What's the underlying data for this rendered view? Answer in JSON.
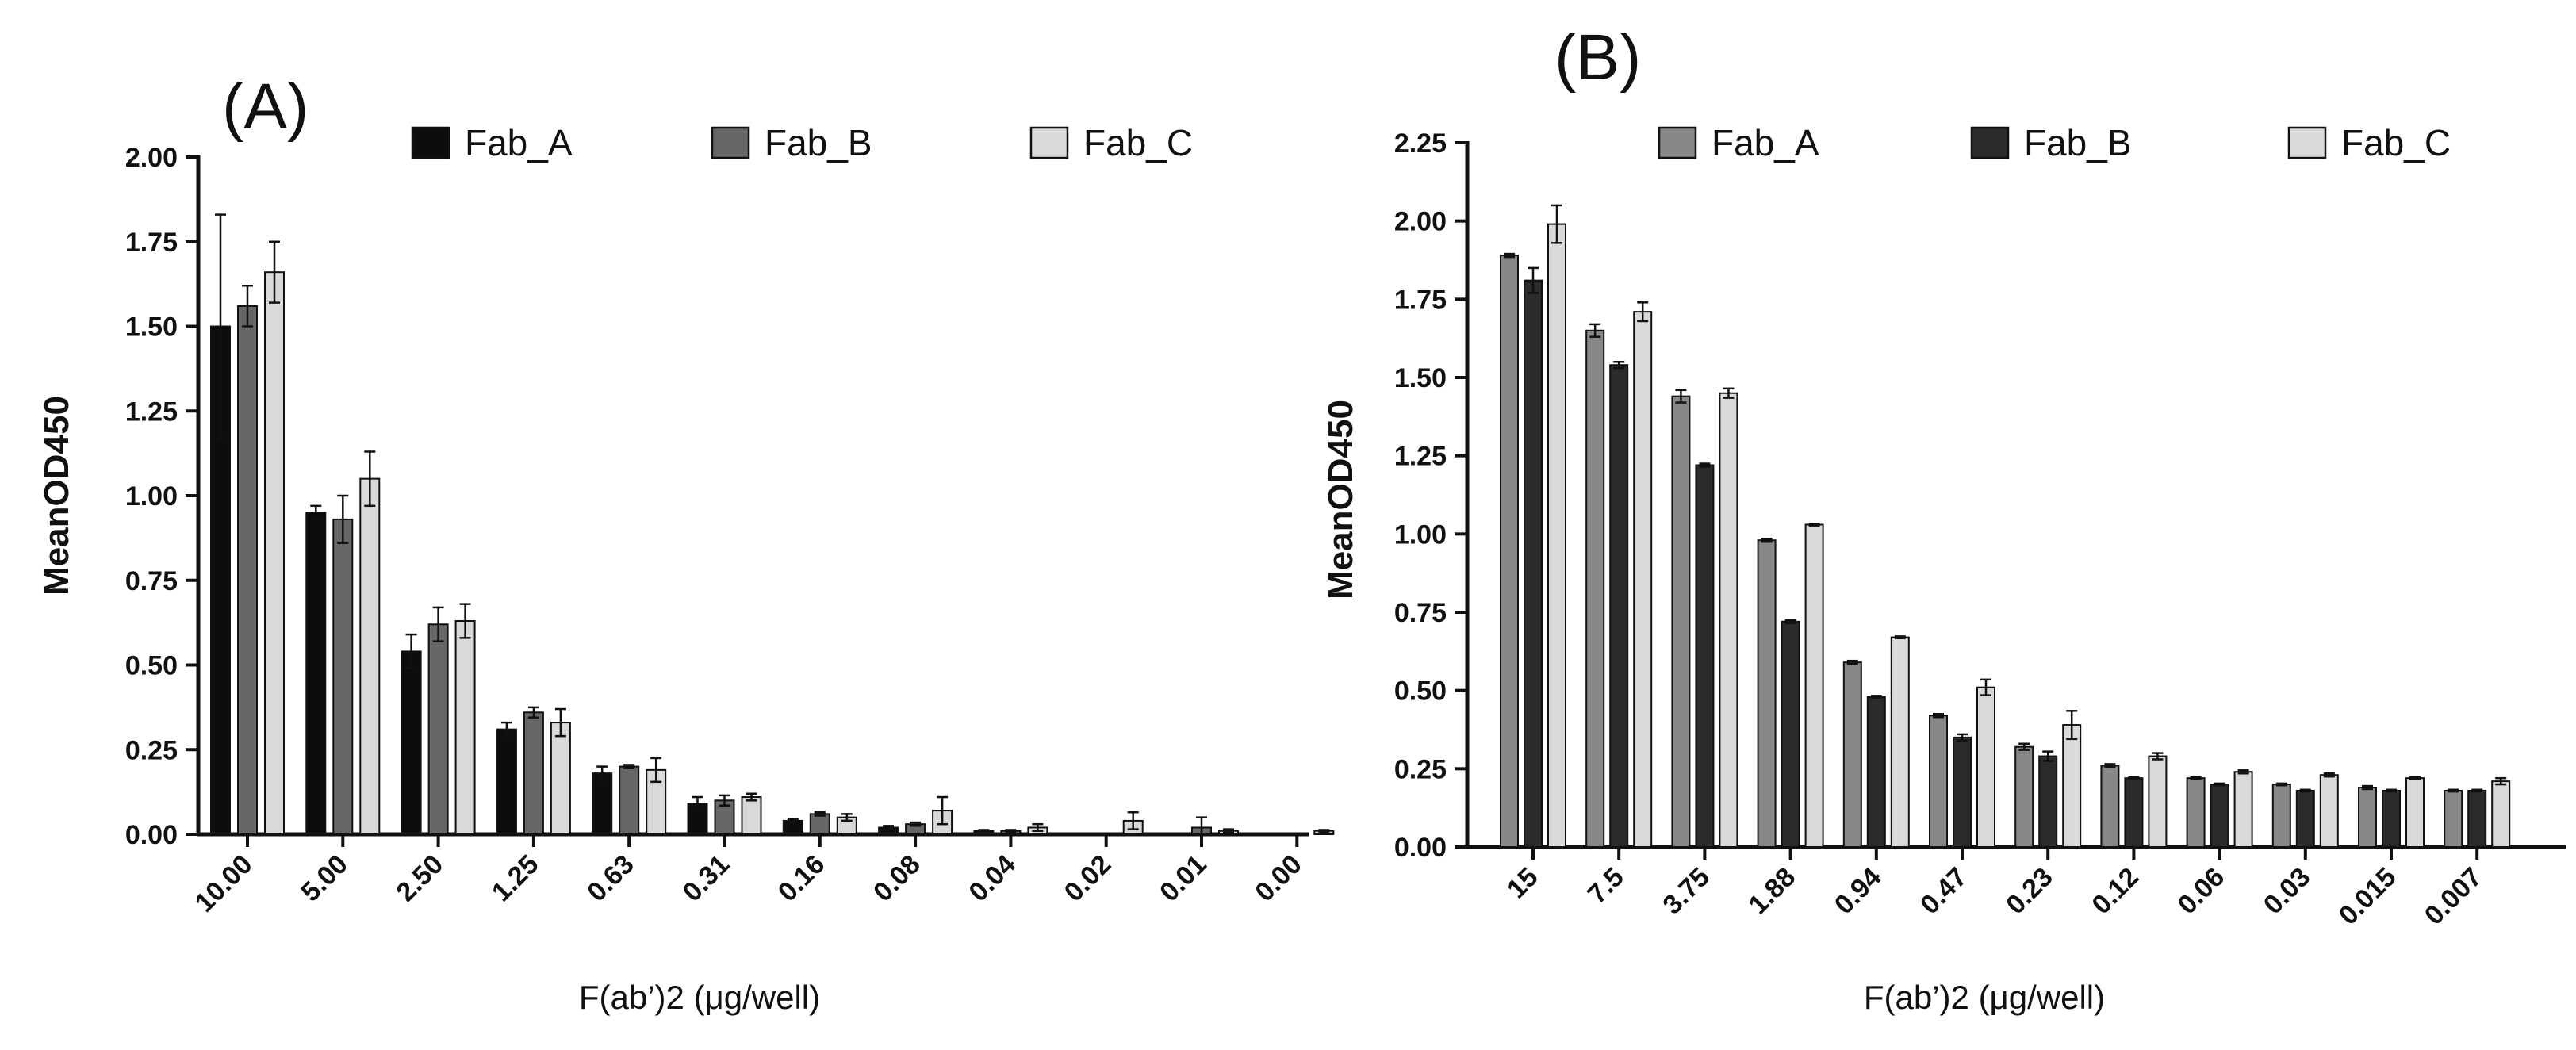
{
  "chart_data": [
    {
      "type": "bar",
      "panel_label": "(A)",
      "title": "",
      "xlabel": "F(ab’)2 (μg/well)",
      "ylabel": "MeanOD450",
      "ylim": [
        0,
        2.0
      ],
      "yticks": [
        "0.00",
        "0.25",
        "0.50",
        "0.75",
        "1.00",
        "1.25",
        "1.50",
        "1.75",
        "2.00"
      ],
      "categories": [
        "10.00",
        "5.00",
        "2.50",
        "1.25",
        "0.63",
        "0.31",
        "0.16",
        "0.08",
        "0.04",
        "0.02",
        "0.01",
        "0.00"
      ],
      "legend_position": "top-right",
      "series": [
        {
          "name": "Fab_A",
          "color": "#0d0d0d",
          "values": [
            1.5,
            0.95,
            0.54,
            0.31,
            0.18,
            0.09,
            0.04,
            0.02,
            0.01,
            0.0,
            0.0,
            0.0
          ],
          "errors": [
            0.33,
            0.02,
            0.05,
            0.02,
            0.02,
            0.02,
            0.005,
            0.005,
            0.003,
            0.0,
            0.0,
            0.0
          ]
        },
        {
          "name": "Fab_B",
          "color": "#666666",
          "values": [
            1.56,
            0.93,
            0.62,
            0.36,
            0.2,
            0.1,
            0.06,
            0.03,
            0.01,
            0.0,
            0.02,
            0.0
          ],
          "errors": [
            0.06,
            0.07,
            0.05,
            0.015,
            0.005,
            0.015,
            0.005,
            0.005,
            0.003,
            0.0,
            0.03,
            0.0
          ]
        },
        {
          "name": "Fab_C",
          "color": "#d9d9d9",
          "values": [
            1.66,
            1.05,
            0.63,
            0.33,
            0.19,
            0.11,
            0.05,
            0.07,
            0.02,
            0.04,
            0.01,
            0.01
          ],
          "errors": [
            0.09,
            0.08,
            0.05,
            0.04,
            0.035,
            0.01,
            0.01,
            0.04,
            0.01,
            0.025,
            0.005,
            0.003
          ]
        }
      ]
    },
    {
      "type": "bar",
      "panel_label": "(B)",
      "title": "",
      "xlabel": "F(ab’)2 (μg/well)",
      "ylabel": "MeanOD450",
      "ylim": [
        0,
        2.25
      ],
      "yticks": [
        "0.00",
        "0.25",
        "0.50",
        "0.75",
        "1.00",
        "1.25",
        "1.50",
        "1.75",
        "2.00",
        "2.25"
      ],
      "categories": [
        "15",
        "7.5",
        "3.75",
        "1.88",
        "0.94",
        "0.47",
        "0.23",
        "0.12",
        "0.06",
        "0.03",
        "0.015",
        "0.007"
      ],
      "legend_position": "top",
      "series": [
        {
          "name": "Fab_A",
          "color": "#888888",
          "values": [
            1.89,
            1.65,
            1.44,
            0.98,
            0.59,
            0.42,
            0.32,
            0.26,
            0.22,
            0.2,
            0.19,
            0.18
          ],
          "errors": [
            0.005,
            0.02,
            0.02,
            0.005,
            0.005,
            0.005,
            0.01,
            0.005,
            0.003,
            0.003,
            0.005,
            0.003
          ]
        },
        {
          "name": "Fab_B",
          "color": "#2b2b2b",
          "values": [
            1.81,
            1.54,
            1.22,
            0.72,
            0.48,
            0.35,
            0.29,
            0.22,
            0.2,
            0.18,
            0.18,
            0.18
          ],
          "errors": [
            0.04,
            0.01,
            0.005,
            0.005,
            0.003,
            0.01,
            0.015,
            0.003,
            0.003,
            0.003,
            0.003,
            0.003
          ]
        },
        {
          "name": "Fab_C",
          "color": "#d9d9d9",
          "values": [
            1.99,
            1.71,
            1.45,
            1.03,
            0.67,
            0.51,
            0.39,
            0.29,
            0.24,
            0.23,
            0.22,
            0.21
          ],
          "errors": [
            0.06,
            0.03,
            0.015,
            0.003,
            0.003,
            0.025,
            0.045,
            0.01,
            0.005,
            0.005,
            0.003,
            0.01
          ]
        }
      ]
    }
  ]
}
